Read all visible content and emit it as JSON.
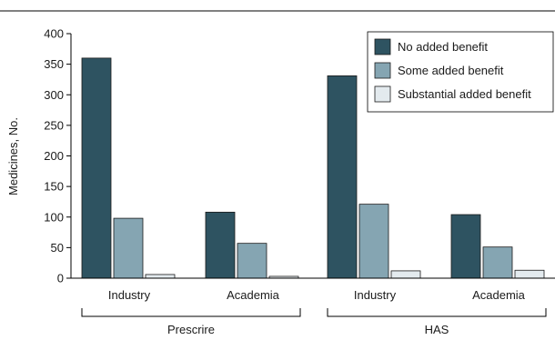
{
  "chart_data": {
    "type": "bar",
    "ylabel": "Medicines, No.",
    "ylim": [
      0,
      400
    ],
    "yticks": [
      0,
      50,
      100,
      150,
      200,
      250,
      300,
      350,
      400
    ],
    "grid": false,
    "legend_position": "top-right",
    "categories": [
      "Industry",
      "Academia",
      "Industry",
      "Academia"
    ],
    "groups": [
      {
        "label": "Prescrire",
        "categories": [
          0,
          1
        ]
      },
      {
        "label": "HAS",
        "categories": [
          2,
          3
        ]
      }
    ],
    "series": [
      {
        "name": "No added benefit",
        "color": "#2e5361",
        "values": [
          360,
          108,
          331,
          104
        ]
      },
      {
        "name": "Some added benefit",
        "color": "#85a5b2",
        "values": [
          98,
          57,
          121,
          51
        ]
      },
      {
        "name": "Substantial added benefit",
        "color": "#e3eaee",
        "values": [
          6,
          3,
          12,
          13
        ]
      }
    ]
  }
}
